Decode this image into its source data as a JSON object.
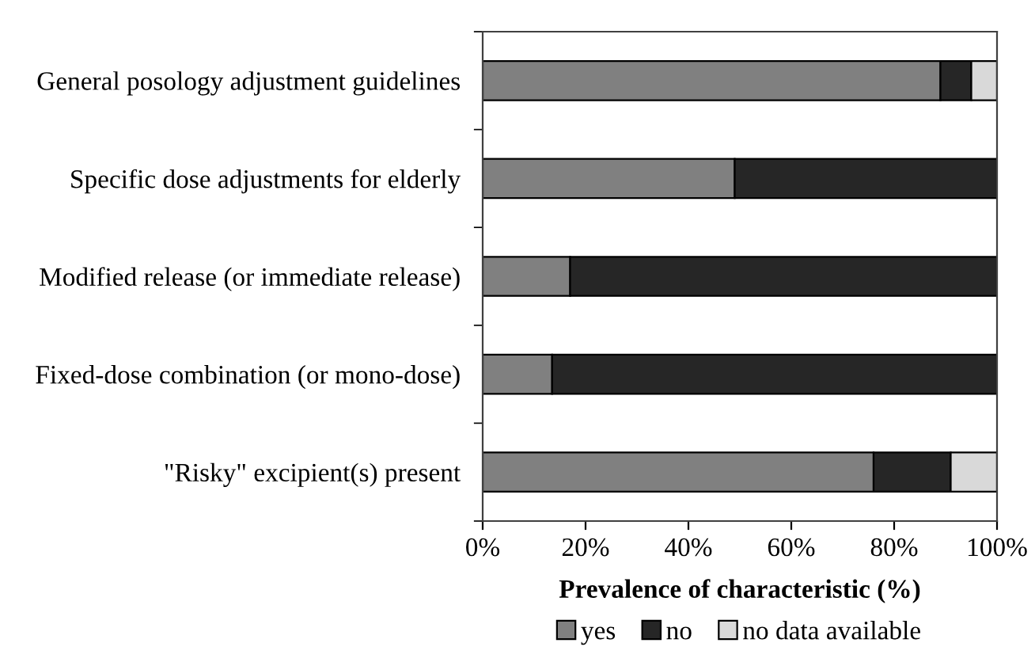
{
  "chart_data": {
    "type": "bar",
    "orientation": "horizontal",
    "stacked": true,
    "categories": [
      "General posology adjustment guidelines",
      "Specific dose adjustments for elderly",
      "Modified release (or immediate release)",
      "Fixed-dose combination (or mono-dose)",
      "\"Risky\" excipient(s) present"
    ],
    "series": [
      {
        "name": "yes",
        "color": "#808080",
        "values": [
          89,
          49,
          17,
          13.5,
          76
        ]
      },
      {
        "name": "no",
        "color": "#262626",
        "values": [
          6,
          51,
          83,
          86.5,
          15
        ]
      },
      {
        "name": "no data available",
        "color": "#d9d9d9",
        "values": [
          5,
          0,
          0,
          0,
          9
        ]
      }
    ],
    "xlabel": "Prevalence of characteristic (%)",
    "xlim": [
      0,
      100
    ],
    "xticks": [
      {
        "value": 0,
        "label": "0%"
      },
      {
        "value": 20,
        "label": "20%"
      },
      {
        "value": 40,
        "label": "40%"
      },
      {
        "value": 60,
        "label": "60%"
      },
      {
        "value": 80,
        "label": "80%"
      },
      {
        "value": 100,
        "label": "100%"
      }
    ],
    "grid": false,
    "legend": "bottom"
  }
}
